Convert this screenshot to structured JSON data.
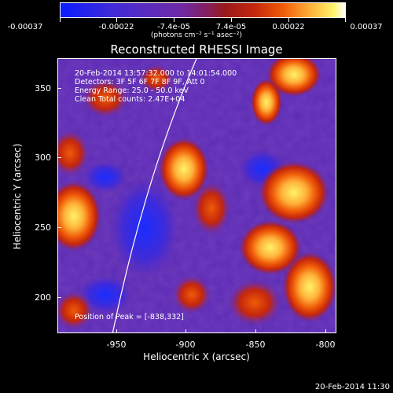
{
  "colorbar": {
    "tick_labels": [
      "-0.00037",
      "-0.00022",
      "-7.4e-05",
      "7.4e-05",
      "0.00022",
      "0.00037"
    ],
    "units": "(photons cm⁻² s⁻¹ asec⁻²)"
  },
  "title": "Reconstructed RHESSI Image",
  "info": {
    "time_range": "20-Feb-2014 13:57:32.000 to 14:01:54.000",
    "detectors": "Detectors: 3F 5F 6F 7F 8F 9F, Att 0",
    "energy": "Energy Range: 25.0 - 50.0 keV",
    "clean": "Clean     Total counts: 2.47E+04",
    "peak": "Position of Peak = [-838,332]"
  },
  "axes": {
    "ylabel": "Heliocentric Y (arcsec)",
    "xlabel": "Heliocentric X (arcsec)",
    "yticks": [
      "350",
      "300",
      "250",
      "200"
    ],
    "xticks": [
      "-950",
      "-900",
      "-850",
      "-800"
    ]
  },
  "timestamp": "20-Feb-2014 11:30"
}
